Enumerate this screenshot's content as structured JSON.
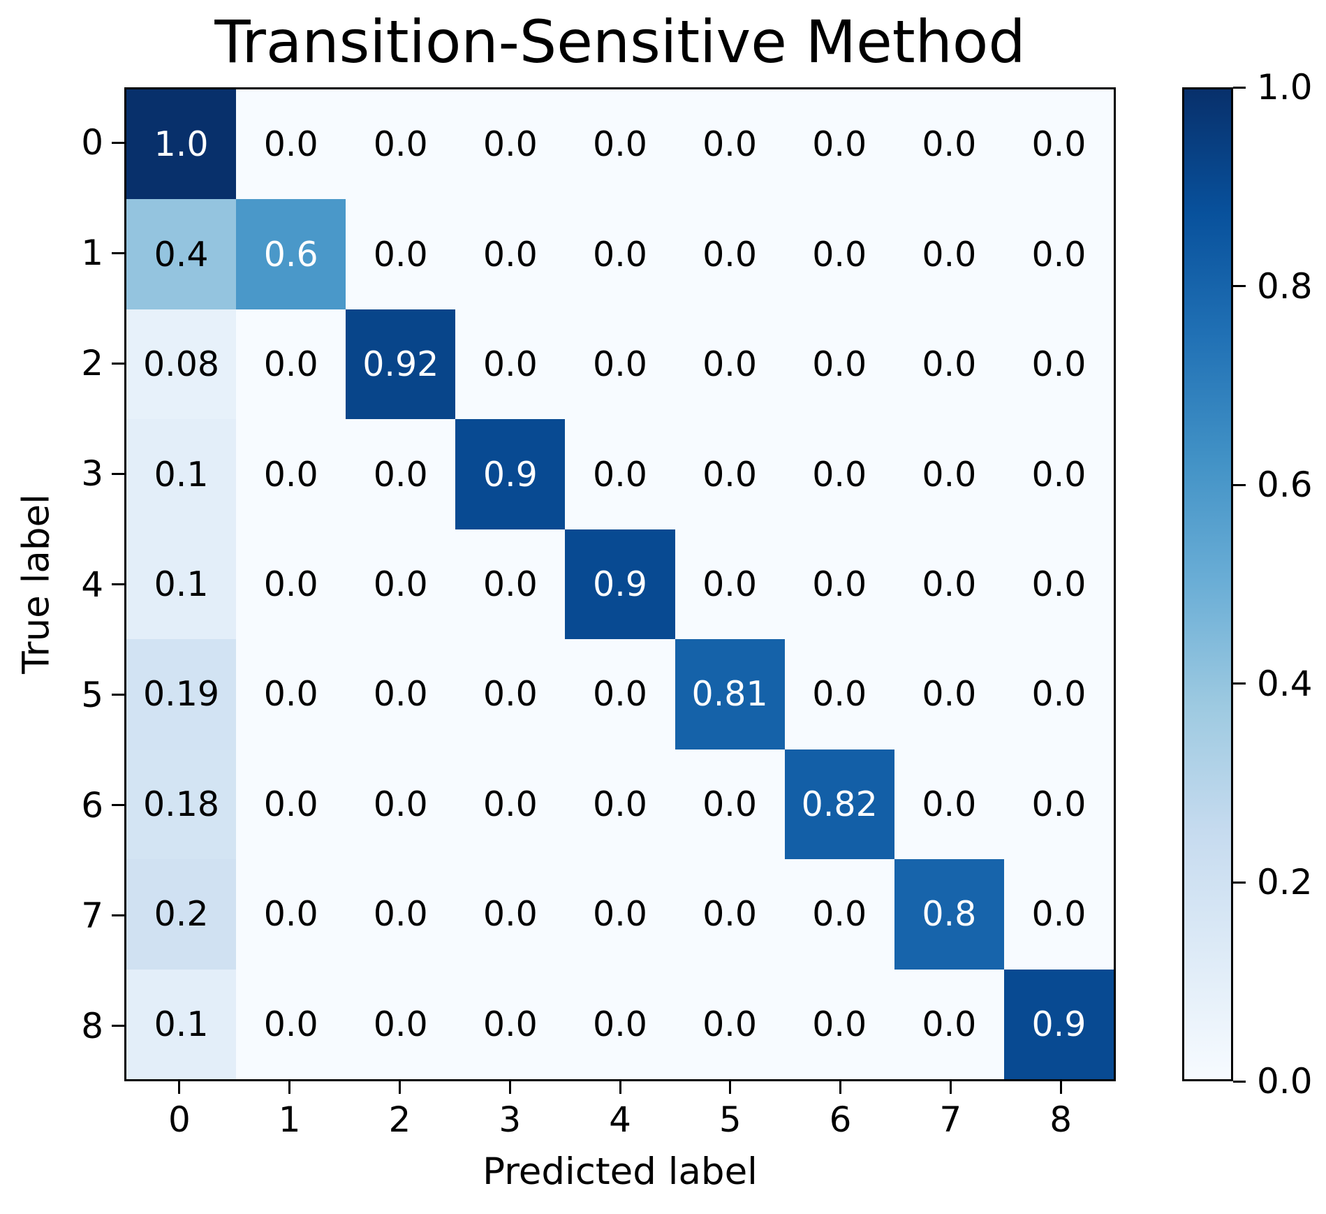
{
  "chart_data": {
    "type": "heatmap",
    "title": "Transition-Sensitive Method",
    "xlabel": "Predicted label",
    "ylabel": "True label",
    "x_tick_labels": [
      "0",
      "1",
      "2",
      "3",
      "4",
      "5",
      "6",
      "7",
      "8"
    ],
    "y_tick_labels": [
      "0",
      "1",
      "2",
      "3",
      "4",
      "5",
      "6",
      "7",
      "8"
    ],
    "matrix_display": [
      [
        "1.0",
        "0.0",
        "0.0",
        "0.0",
        "0.0",
        "0.0",
        "0.0",
        "0.0",
        "0.0"
      ],
      [
        "0.4",
        "0.6",
        "0.0",
        "0.0",
        "0.0",
        "0.0",
        "0.0",
        "0.0",
        "0.0"
      ],
      [
        "0.08",
        "0.0",
        "0.92",
        "0.0",
        "0.0",
        "0.0",
        "0.0",
        "0.0",
        "0.0"
      ],
      [
        "0.1",
        "0.0",
        "0.0",
        "0.9",
        "0.0",
        "0.0",
        "0.0",
        "0.0",
        "0.0"
      ],
      [
        "0.1",
        "0.0",
        "0.0",
        "0.0",
        "0.9",
        "0.0",
        "0.0",
        "0.0",
        "0.0"
      ],
      [
        "0.19",
        "0.0",
        "0.0",
        "0.0",
        "0.0",
        "0.81",
        "0.0",
        "0.0",
        "0.0"
      ],
      [
        "0.18",
        "0.0",
        "0.0",
        "0.0",
        "0.0",
        "0.0",
        "0.82",
        "0.0",
        "0.0"
      ],
      [
        "0.2",
        "0.0",
        "0.0",
        "0.0",
        "0.0",
        "0.0",
        "0.0",
        "0.8",
        "0.0"
      ],
      [
        "0.1",
        "0.0",
        "0.0",
        "0.0",
        "0.0",
        "0.0",
        "0.0",
        "0.0",
        "0.9"
      ]
    ],
    "vmin": 0.0,
    "vmax": 1.0,
    "colormap": "Blues",
    "colormap_stops": [
      "#f7fbff",
      "#deebf7",
      "#c6dbef",
      "#9ecae1",
      "#6baed6",
      "#4292c6",
      "#2171b5",
      "#08519c",
      "#08306b"
    ],
    "colorbar_ticks": [
      {
        "label": "1.0",
        "value": 1.0
      },
      {
        "label": "0.8",
        "value": 0.8
      },
      {
        "label": "0.6",
        "value": 0.6
      },
      {
        "label": "0.4",
        "value": 0.4
      },
      {
        "label": "0.2",
        "value": 0.2
      },
      {
        "label": "0.0",
        "value": 0.0
      }
    ],
    "text_color_threshold": 0.5,
    "text_colors": {
      "dark": "#000000",
      "light": "#ffffff"
    },
    "spine_color": "#000000",
    "grid": "off",
    "legend_position": "colorbar-right"
  }
}
